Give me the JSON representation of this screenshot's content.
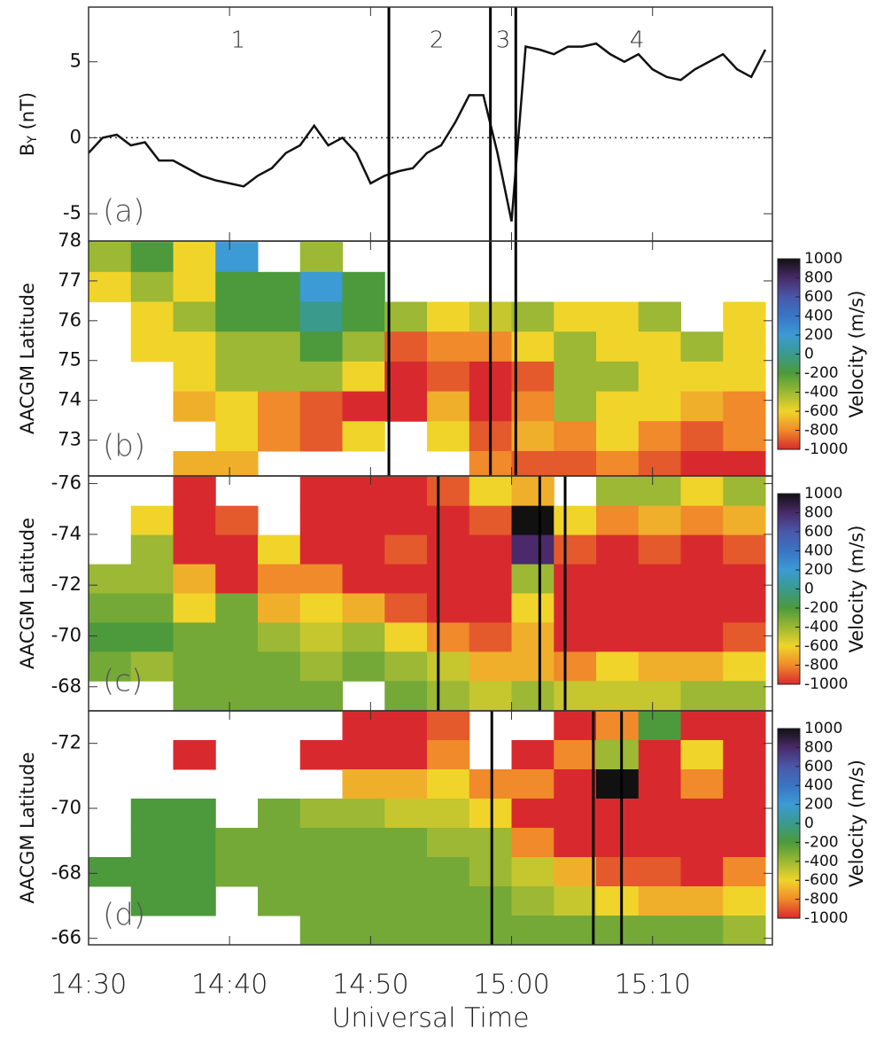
{
  "chart_data": [
    {
      "type": "line",
      "y_label_main": "B",
      "y_label_sub": "Y",
      "y_label_unit": " (nT)",
      "panel_label": "(a)",
      "x": [
        0,
        1,
        2,
        3,
        4,
        5,
        6,
        7,
        8,
        9,
        10,
        11,
        12,
        13,
        14,
        15,
        16,
        17,
        18,
        19,
        20,
        21,
        22,
        23,
        24,
        25,
        26,
        27,
        28,
        29,
        30,
        31,
        32,
        33,
        34,
        35,
        36,
        37,
        38,
        39,
        40,
        41,
        42,
        43,
        44,
        45,
        46,
        47,
        48
      ],
      "values": [
        -1,
        0,
        0.2,
        -0.5,
        -0.3,
        -1.5,
        -1.5,
        -2,
        -2.5,
        -2.8,
        -3,
        -3.2,
        -2.5,
        -2,
        -1,
        -0.5,
        0.8,
        -0.5,
        0,
        -1,
        -3,
        -2.5,
        -2.2,
        -2,
        -1,
        -0.5,
        1,
        2.8,
        2.8,
        -1,
        -5.5,
        6,
        5.8,
        5.5,
        6,
        6,
        6.2,
        5.5,
        5,
        5.5,
        4.5,
        4,
        3.8,
        4.5,
        5,
        5.5,
        4.5,
        4,
        5.8
      ],
      "color": "#111111",
      "reference_line": 0,
      "xlim": [
        0,
        48.5
      ],
      "xticks": [
        0,
        10,
        20,
        30,
        40
      ],
      "ylim": [
        -6.8,
        8.6
      ],
      "yticks": [
        -5,
        0,
        5
      ],
      "markers": [
        21.3,
        28.5,
        30.3
      ],
      "regions": [
        {
          "text": "1",
          "x": 10.6
        },
        {
          "text": "2",
          "x": 24.7
        },
        {
          "text": "3",
          "x": 29.4
        },
        {
          "text": "4",
          "x": 38.9
        }
      ]
    },
    {
      "type": "heatmap",
      "y_label": "AACGM Latitude",
      "panel_label": "(b)",
      "xlim": [
        0,
        48.5
      ],
      "xticks": [
        0,
        10,
        20,
        30,
        40
      ],
      "ylim": [
        72.1,
        78
      ],
      "yticks": [
        73,
        74,
        75,
        76,
        77,
        78
      ],
      "markers": [
        21.3,
        28.5,
        30.3
      ],
      "x": [
        1.5,
        4.5,
        7.5,
        10.5,
        13.5,
        16.5,
        19.5,
        22.5,
        25.5,
        28.5,
        31.5,
        34.5,
        37.5,
        40.5,
        43.5,
        46.5
      ],
      "y": [
        77.6,
        76.85,
        76.1,
        75.35,
        74.6,
        73.85,
        73.1,
        72.35
      ],
      "values": [
        [
          -400,
          -200,
          -600,
          200,
          null,
          -400,
          null,
          null,
          null,
          null,
          null,
          null,
          null,
          null,
          null,
          null
        ],
        [
          -600,
          -400,
          -600,
          -200,
          -200,
          200,
          -200,
          null,
          null,
          null,
          null,
          null,
          null,
          null,
          null,
          null
        ],
        [
          null,
          -600,
          -400,
          -200,
          -200,
          0,
          -200,
          -400,
          -600,
          -500,
          -400,
          -600,
          -600,
          -400,
          null,
          -600
        ],
        [
          null,
          -600,
          -600,
          -400,
          -400,
          -200,
          -400,
          -900,
          -800,
          -800,
          -600,
          -400,
          -600,
          -600,
          -400,
          -600
        ],
        [
          null,
          null,
          -600,
          -400,
          -400,
          -400,
          -600,
          -1000,
          -900,
          -1000,
          -900,
          -400,
          -400,
          -600,
          -600,
          -600
        ],
        [
          null,
          null,
          -700,
          -600,
          -800,
          -900,
          -1000,
          -1000,
          -700,
          -1000,
          -800,
          -400,
          -600,
          -600,
          -700,
          -800
        ],
        [
          null,
          null,
          null,
          -600,
          -800,
          -900,
          -600,
          null,
          -600,
          -900,
          -700,
          -800,
          -600,
          -800,
          -900,
          -800
        ],
        [
          null,
          null,
          -700,
          -700,
          null,
          null,
          null,
          null,
          null,
          -800,
          -900,
          -900,
          -800,
          -900,
          -1000,
          -1000
        ]
      ],
      "colorbar": {
        "label": "Velocity (m/s)",
        "ticks": [
          1000,
          800,
          600,
          400,
          200,
          0,
          -200,
          -400,
          -600,
          -800,
          -1000
        ],
        "colors": [
          "#111111",
          "#4a2a6a",
          "#4a58a8",
          "#3a74c4",
          "#3c9ad4",
          "#3a9a8c",
          "#4c9a3c",
          "#9cb834",
          "#f0d42a",
          "#f08a2a",
          "#d82a2e"
        ]
      }
    },
    {
      "type": "heatmap",
      "y_label": "AACGM Latitude",
      "panel_label": "(c)",
      "xlim": [
        0,
        48.5
      ],
      "xticks": [
        0,
        10,
        20,
        30,
        40
      ],
      "ylim": [
        -67.05,
        -76.3
      ],
      "yticks": [
        -76,
        -74,
        -72,
        -70,
        -68
      ],
      "markers": [
        24.8,
        32.0,
        33.8
      ],
      "x": [
        1.5,
        4.5,
        7.5,
        10.5,
        13.5,
        16.5,
        19.5,
        22.5,
        25.5,
        28.5,
        31.5,
        34.5,
        37.5,
        40.5,
        43.5,
        46.5
      ],
      "y": [
        -75.7,
        -74.55,
        -73.4,
        -72.25,
        -71.1,
        -69.95,
        -68.8,
        -67.65
      ],
      "values": [
        [
          null,
          null,
          -1000,
          null,
          null,
          -1000,
          -1000,
          -1000,
          -900,
          -600,
          -700,
          null,
          -400,
          -400,
          -600,
          -400
        ],
        [
          null,
          -600,
          -1000,
          -900,
          null,
          -1000,
          -1000,
          -1000,
          -1000,
          -900,
          1000,
          -600,
          -800,
          -700,
          -800,
          -700
        ],
        [
          null,
          -400,
          -1000,
          -1000,
          -600,
          -1000,
          -1000,
          -900,
          -1000,
          -1000,
          800,
          -900,
          -1000,
          -900,
          -1000,
          -900
        ],
        [
          -400,
          -400,
          -700,
          -1000,
          -800,
          -800,
          -1000,
          -1000,
          -1000,
          -1000,
          -400,
          -1000,
          -1000,
          -1000,
          -1000,
          -1000
        ],
        [
          -300,
          -300,
          -600,
          -300,
          -700,
          -600,
          -700,
          -900,
          -1000,
          -1000,
          -600,
          -1000,
          -1000,
          -1000,
          -1000,
          -1000
        ],
        [
          -200,
          -200,
          -300,
          -300,
          -400,
          -500,
          -400,
          -600,
          -800,
          -900,
          -700,
          -1000,
          -1000,
          -1000,
          -1000,
          -900
        ],
        [
          -300,
          -400,
          -300,
          -300,
          -300,
          -400,
          -300,
          -400,
          -500,
          -700,
          -700,
          -800,
          -600,
          -700,
          -700,
          -600
        ],
        [
          null,
          null,
          -300,
          -300,
          -300,
          -300,
          null,
          -300,
          -400,
          -500,
          -400,
          -500,
          -500,
          -500,
          -400,
          -400
        ]
      ],
      "colorbar": {
        "label": "Velocity (m/s)",
        "ticks": [
          1000,
          800,
          600,
          400,
          200,
          0,
          -200,
          -400,
          -600,
          -800,
          -1000
        ],
        "colors": [
          "#111111",
          "#4a2a6a",
          "#4a58a8",
          "#3a74c4",
          "#3c9ad4",
          "#3a9a8c",
          "#4c9a3c",
          "#9cb834",
          "#f0d42a",
          "#f08a2a",
          "#d82a2e"
        ]
      }
    },
    {
      "type": "heatmap",
      "y_label": "AACGM Latitude",
      "panel_label": "(d)",
      "x_label": "Universal Time",
      "xlim": [
        0,
        48.5
      ],
      "xticks": [
        {
          "value": 0,
          "label": "14:30"
        },
        {
          "value": 10,
          "label": "14:40"
        },
        {
          "value": 20,
          "label": "14:50"
        },
        {
          "value": 30,
          "label": "15:00"
        },
        {
          "value": 40,
          "label": "15:10"
        }
      ],
      "ylim": [
        -65.8,
        -73.0
      ],
      "yticks": [
        -72,
        -70,
        -68,
        -66
      ],
      "markers": [
        28.6,
        35.8,
        37.8
      ],
      "x": [
        1.5,
        4.5,
        7.5,
        10.5,
        13.5,
        16.5,
        19.5,
        22.5,
        25.5,
        28.5,
        31.5,
        34.5,
        37.5,
        40.5,
        43.5,
        46.5
      ],
      "y": [
        -72.55,
        -71.65,
        -70.75,
        -69.85,
        -68.95,
        -68.05,
        -67.15,
        -66.25
      ],
      "values": [
        [
          null,
          null,
          null,
          null,
          null,
          null,
          -1000,
          -1000,
          -900,
          null,
          null,
          -1000,
          -800,
          -200,
          -1000,
          -1000
        ],
        [
          null,
          null,
          -1000,
          null,
          null,
          -1000,
          -1000,
          -1000,
          -800,
          null,
          -1000,
          -800,
          -400,
          -1000,
          -600,
          -1000
        ],
        [
          null,
          null,
          null,
          null,
          null,
          null,
          -700,
          -700,
          -600,
          -800,
          -800,
          -1000,
          1000,
          -1000,
          -800,
          -1000
        ],
        [
          null,
          -200,
          -200,
          null,
          -300,
          -400,
          -400,
          -500,
          -500,
          -600,
          -1000,
          -1000,
          -1000,
          -1000,
          -1000,
          -1000
        ],
        [
          null,
          -200,
          -200,
          -300,
          -300,
          -300,
          -300,
          -300,
          -400,
          -400,
          -800,
          -1000,
          -1000,
          -1000,
          -1000,
          -1000
        ],
        [
          -200,
          -200,
          -200,
          -300,
          -300,
          -300,
          -300,
          -300,
          -300,
          -400,
          -500,
          -700,
          -900,
          -900,
          -1000,
          -800
        ],
        [
          null,
          -200,
          -200,
          null,
          -300,
          -300,
          -300,
          -300,
          -300,
          -300,
          -400,
          -500,
          -600,
          -700,
          -700,
          -600
        ],
        [
          null,
          null,
          null,
          null,
          null,
          -300,
          -300,
          -300,
          -300,
          -300,
          -300,
          -300,
          -300,
          -300,
          -300,
          -400
        ]
      ],
      "colorbar": {
        "label": "Velocity (m/s)",
        "ticks": [
          1000,
          800,
          600,
          400,
          200,
          0,
          -200,
          -400,
          -600,
          -800,
          -1000
        ],
        "colors": [
          "#111111",
          "#4a2a6a",
          "#4a58a8",
          "#3a74c4",
          "#3c9ad4",
          "#3a9a8c",
          "#4c9a3c",
          "#9cb834",
          "#f0d42a",
          "#f08a2a",
          "#d82a2e"
        ]
      }
    }
  ]
}
